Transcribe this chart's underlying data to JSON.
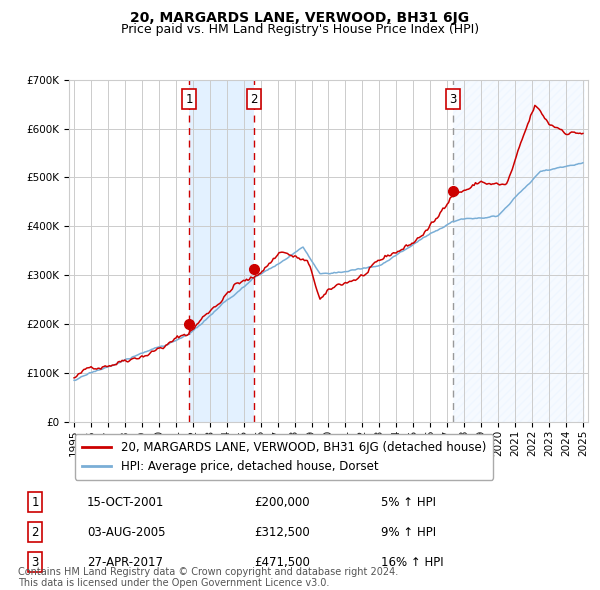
{
  "title": "20, MARGARDS LANE, VERWOOD, BH31 6JG",
  "subtitle": "Price paid vs. HM Land Registry's House Price Index (HPI)",
  "ylim": [
    0,
    700000
  ],
  "yticks": [
    0,
    100000,
    200000,
    300000,
    400000,
    500000,
    600000,
    700000
  ],
  "ytick_labels": [
    "£0",
    "£100K",
    "£200K",
    "£300K",
    "£400K",
    "£500K",
    "£600K",
    "£700K"
  ],
  "transactions": [
    {
      "number": 1,
      "date": "15-OCT-2001",
      "year": 2001.79,
      "price": 200000,
      "pct": "5%",
      "direction": "↑"
    },
    {
      "number": 2,
      "date": "03-AUG-2005",
      "year": 2005.59,
      "price": 312500,
      "pct": "9%",
      "direction": "↑"
    },
    {
      "number": 3,
      "date": "27-APR-2017",
      "year": 2017.32,
      "price": 471500,
      "pct": "16%",
      "direction": "↑"
    }
  ],
  "legend_price_label": "20, MARGARDS LANE, VERWOOD, BH31 6JG (detached house)",
  "legend_hpi_label": "HPI: Average price, detached house, Dorset",
  "footer": "Contains HM Land Registry data © Crown copyright and database right 2024.\nThis data is licensed under the Open Government Licence v3.0.",
  "price_line_color": "#cc0000",
  "hpi_line_color": "#7aaed6",
  "dot_color": "#cc0000",
  "vline_sale_color": "#cc0000",
  "vline_sale3_color": "#999999",
  "shade_color": "#ddeeff",
  "bg_color": "#ffffff",
  "grid_color": "#cccccc",
  "title_fontsize": 10,
  "subtitle_fontsize": 9,
  "tick_fontsize": 7.5,
  "legend_fontsize": 8.5,
  "footer_fontsize": 7
}
